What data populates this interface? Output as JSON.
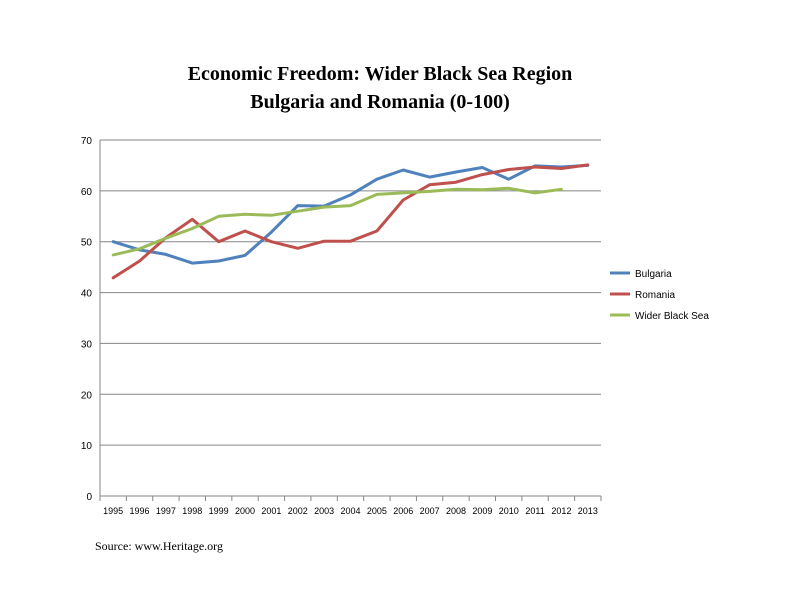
{
  "chart_data": {
    "type": "line",
    "title": "Economic Freedom: Wider Black Sea Region",
    "subtitle": "Bulgaria and Romania (0-100)",
    "xlabel": "",
    "ylabel": "",
    "ylim": [
      0,
      70
    ],
    "yticks": [
      0,
      10,
      20,
      30,
      40,
      50,
      60,
      70
    ],
    "grid": true,
    "legend_position": "right",
    "categories": [
      "1995",
      "1996",
      "1997",
      "1998",
      "1999",
      "2000",
      "2001",
      "2002",
      "2003",
      "2004",
      "2005",
      "2006",
      "2007",
      "2008",
      "2009",
      "2010",
      "2011",
      "2012",
      "2013"
    ],
    "series": [
      {
        "name": "Bulgaria",
        "color": "#4F81BD",
        "values": [
          50.0,
          48.4,
          47.5,
          45.8,
          46.2,
          47.3,
          51.9,
          57.1,
          57.0,
          59.2,
          62.3,
          64.1,
          62.7,
          63.7,
          64.6,
          62.3,
          64.9,
          64.7,
          65.0
        ]
      },
      {
        "name": "Romania",
        "color": "#C0504D",
        "values": [
          42.9,
          46.2,
          50.8,
          54.4,
          50.0,
          52.1,
          50.0,
          48.7,
          50.1,
          50.1,
          52.1,
          58.2,
          61.2,
          61.7,
          63.2,
          64.2,
          64.7,
          64.4,
          65.1
        ]
      },
      {
        "name": "Wider Black Sea",
        "color": "#9BBB59",
        "values": [
          47.4,
          48.6,
          50.7,
          52.6,
          55.0,
          55.4,
          55.2,
          56.0,
          56.8,
          57.1,
          59.3,
          59.6,
          59.9,
          60.3,
          60.2,
          60.5,
          59.6,
          60.3,
          null
        ]
      }
    ]
  },
  "source": "Source:  www.Heritage.org"
}
